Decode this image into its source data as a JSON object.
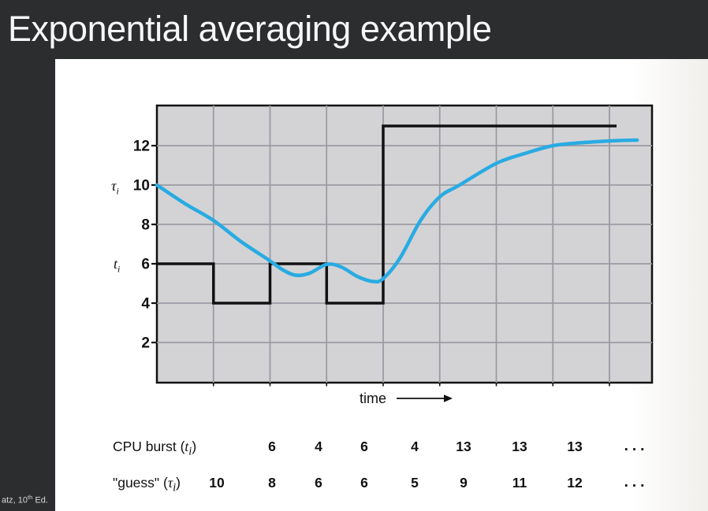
{
  "title": "Exponential averaging example",
  "footer": {
    "pre": "atz, 10",
    "sup": "th",
    "post": " Ed."
  },
  "time_axis_label": "time",
  "axis": {
    "tau": {
      "base": "τ",
      "sub": "i"
    },
    "t": {
      "base": "t",
      "sub": "i"
    }
  },
  "chart_data": {
    "type": "line",
    "xlabel": "time",
    "ylabel": "",
    "grid": true,
    "y_ticks": [
      12,
      10,
      8,
      6,
      4,
      2
    ],
    "y_range": [
      0,
      14
    ],
    "x_gridline_count": 8,
    "series": [
      {
        "name": "CPU burst (t_i)",
        "style": "step",
        "values": [
          6,
          4,
          6,
          4,
          13
        ],
        "widths": [
          1,
          1,
          1,
          1,
          4.125
        ]
      },
      {
        "name": "guess (tau_i)",
        "style": "smooth",
        "guesses": [
          10,
          8,
          6,
          6,
          5,
          9,
          11,
          12
        ],
        "points": [
          [
            0,
            10
          ],
          [
            0.5,
            9.05
          ],
          [
            1,
            8.2
          ],
          [
            1.5,
            7.1
          ],
          [
            2,
            6.15
          ],
          [
            2.22,
            5.7
          ],
          [
            2.45,
            5.42
          ],
          [
            2.7,
            5.52
          ],
          [
            3.0,
            5.97
          ],
          [
            3.25,
            5.85
          ],
          [
            3.55,
            5.35
          ],
          [
            3.82,
            5.1
          ],
          [
            4.0,
            5.25
          ],
          [
            4.3,
            6.3
          ],
          [
            4.66,
            8.2
          ],
          [
            5.0,
            9.4
          ],
          [
            5.35,
            10.0
          ],
          [
            6,
            11.1
          ],
          [
            6.5,
            11.6
          ],
          [
            7,
            12.0
          ],
          [
            7.5,
            12.15
          ],
          [
            8.1,
            12.25
          ],
          [
            8.49,
            12.28
          ]
        ]
      }
    ]
  },
  "table": {
    "burst_label": {
      "pre": "CPU burst (",
      "var": "t",
      "sub": "i",
      "post": ")"
    },
    "guess_label": {
      "pre": "\"guess\" (",
      "var": "τ",
      "sub": "i",
      "post": ")"
    },
    "burst_values": [
      "6",
      "4",
      "6",
      "4",
      "13",
      "13",
      "13",
      "..."
    ],
    "guess_values": [
      "10",
      "8",
      "6",
      "6",
      "5",
      "9",
      "11",
      "12",
      "..."
    ]
  },
  "colors": {
    "dark_bg": "#2b2d2e",
    "panel": "#ffffff",
    "plot_bg": "#d3d3d6",
    "grid": "#9b9ba3",
    "step": "#111111",
    "curve": "#29abe2",
    "title_text": "#f7f7f7",
    "footer_text": "#d8d8d8"
  }
}
